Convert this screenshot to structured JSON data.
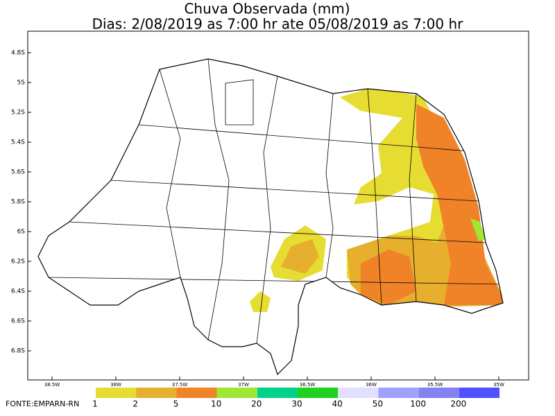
{
  "title": "Chuva Observada (mm)",
  "subtitle": "Dias: 2/08/2019 as 7:00 hr ate 05/08/2019 as 7:00 hr",
  "y_axis": {
    "labels": [
      "4.8S",
      "5S",
      "5.2S",
      "5.4S",
      "5.6S",
      "5.8S",
      "6S",
      "6.2S",
      "6.4S",
      "6.6S",
      "6.8S"
    ]
  },
  "x_axis": {
    "labels": [
      "38.5W",
      "38W",
      "37.5W",
      "37W",
      "36.5W",
      "36W",
      "35.5W",
      "35W"
    ]
  },
  "legend": {
    "labels": [
      "1",
      "2",
      "5",
      "10",
      "20",
      "30",
      "40",
      "50",
      "100",
      "200"
    ],
    "colors": [
      "#e6dc32",
      "#e6af2d",
      "#f08228",
      "#a0e632",
      "#00d28c",
      "#1ed21e",
      "#e1e1ff",
      "#a0a0ff",
      "#8282f0",
      "#5050ff"
    ]
  },
  "source": "FONTE:EMPARN-RN"
}
